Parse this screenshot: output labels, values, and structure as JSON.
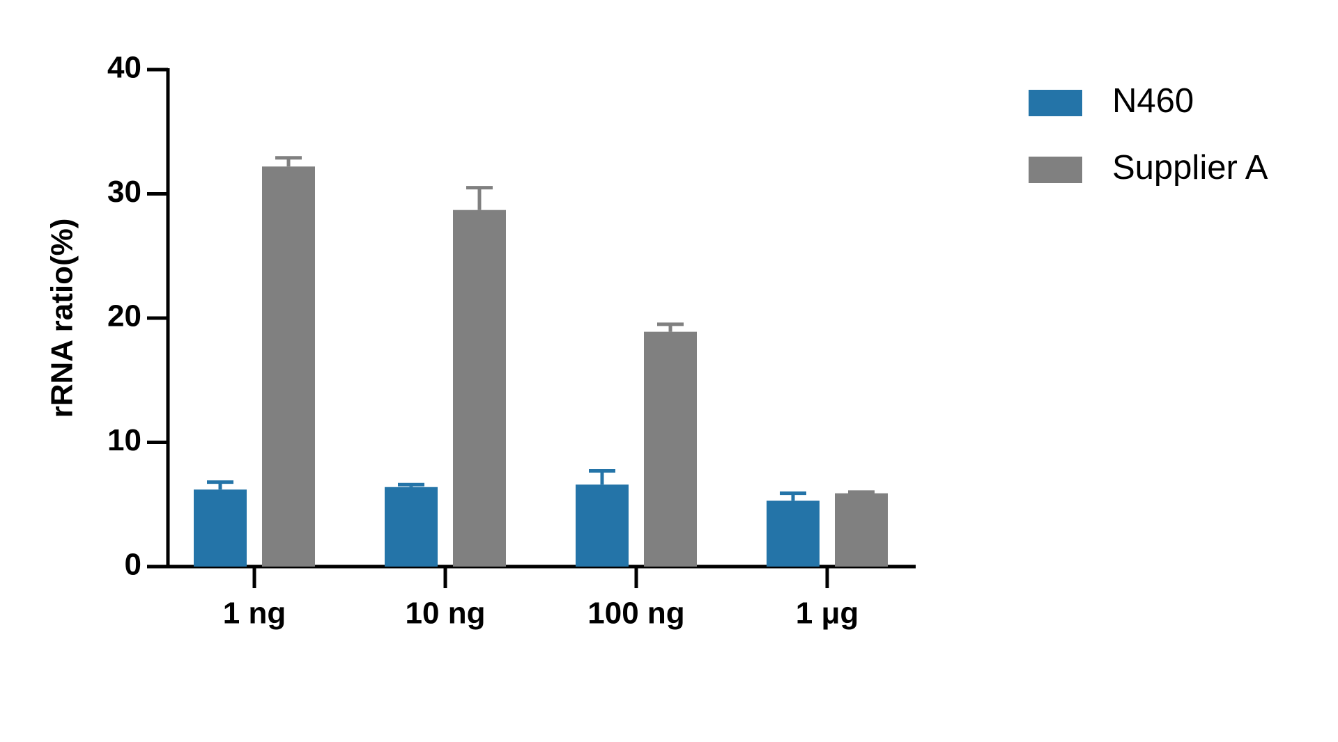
{
  "chart_data": {
    "type": "bar",
    "categories": [
      "1 ng",
      "10 ng",
      "100 ng",
      "1 μg"
    ],
    "series": [
      {
        "name": "N460",
        "color": "#2474a8",
        "values": [
          6.2,
          6.4,
          6.6,
          5.3
        ],
        "errors": [
          0.6,
          0.2,
          1.1,
          0.6
        ]
      },
      {
        "name": "Supplier A",
        "color": "#808080",
        "values": [
          32.2,
          28.7,
          18.9,
          5.9
        ],
        "errors": [
          0.7,
          1.8,
          0.6,
          0.1
        ]
      }
    ],
    "y_label": "rRNA ratio(%)",
    "ylim": [
      0,
      40
    ],
    "yticks": [
      0,
      10,
      20,
      30,
      40
    ],
    "grid": false,
    "legend": "upper right"
  }
}
